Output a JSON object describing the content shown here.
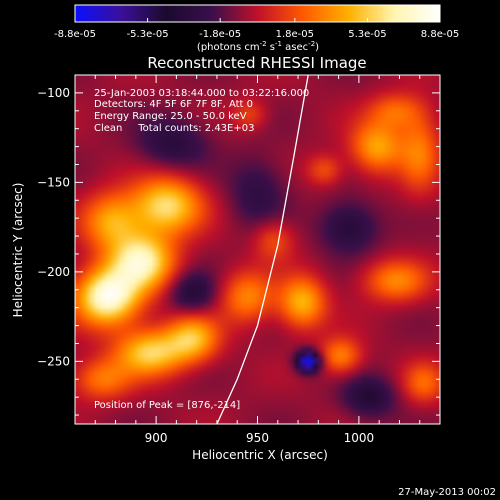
{
  "colorbar": {
    "tick_labels": [
      "-8.8e-05",
      "-5.3e-05",
      "-1.8e-05",
      "1.8e-05",
      "5.3e-05",
      "8.8e-05"
    ],
    "units_main": "(photons cm",
    "units_sup1": "-2",
    "units_mid": " s",
    "units_sup2": "-1",
    "units_end": " asec",
    "units_sup3": "-2",
    "units_close": ")",
    "stops": [
      "#0a10ff",
      "#3b0f9a",
      "#1a0a2e",
      "#3a0f4a",
      "#c0102a",
      "#ff5a00",
      "#ffb000",
      "#fff6b0",
      "#ffffff"
    ]
  },
  "chart_data": {
    "type": "heatmap",
    "title": "Reconstructed RHESSI Image",
    "xlabel": "Heliocentric X (arcsec)",
    "ylabel": "Heliocentric Y (arcsec)",
    "xlim": [
      860,
      1040
    ],
    "ylim": [
      -285,
      -90
    ],
    "x_ticks": [
      900,
      950,
      1000
    ],
    "x_tick_labels": [
      "900",
      "950",
      "1000"
    ],
    "y_ticks": [
      -100,
      -150,
      -200,
      -250
    ],
    "y_tick_labels": [
      "−100",
      "−150",
      "−200",
      "−250"
    ],
    "colorbar_range": [
      -8.8e-05,
      8.8e-05
    ],
    "annotations": [
      "25-Jan-2003 03:18:44.000 to 03:22:16.000",
      "Detectors: 4F 5F 6F 7F 8F, Att 0",
      "Energy Range: 25.0 - 50.0 keV",
      "Clean     Total counts: 2.43E+03"
    ],
    "peak_label": "Position of Peak = [876,-214]",
    "peak": [
      876,
      -214
    ],
    "limb_curve": [
      [
        930,
        -285
      ],
      [
        940,
        -260
      ],
      [
        950,
        -230
      ],
      [
        960,
        -185
      ],
      [
        968,
        -135
      ],
      [
        975,
        -90
      ]
    ],
    "sources": [
      {
        "x": 876,
        "y": -214,
        "sx": 11,
        "sy": 11,
        "a": 1.0
      },
      {
        "x": 893,
        "y": -194,
        "sx": 11,
        "sy": 11,
        "a": 0.85
      },
      {
        "x": 905,
        "y": -163,
        "sx": 12,
        "sy": 11,
        "a": 0.75
      },
      {
        "x": 878,
        "y": -172,
        "sx": 10,
        "sy": 11,
        "a": 0.55
      },
      {
        "x": 897,
        "y": -245,
        "sx": 12,
        "sy": 9,
        "a": 0.7
      },
      {
        "x": 918,
        "y": -237,
        "sx": 9,
        "sy": 9,
        "a": 0.6
      },
      {
        "x": 873,
        "y": -260,
        "sx": 10,
        "sy": 8,
        "a": 0.4
      },
      {
        "x": 945,
        "y": -214,
        "sx": 9,
        "sy": 10,
        "a": 0.45
      },
      {
        "x": 958,
        "y": -182,
        "sx": 7,
        "sy": 8,
        "a": 0.3
      },
      {
        "x": 972,
        "y": -217,
        "sx": 8,
        "sy": 10,
        "a": 0.6
      },
      {
        "x": 991,
        "y": -247,
        "sx": 7,
        "sy": 7,
        "a": 0.45
      },
      {
        "x": 1018,
        "y": -205,
        "sx": 11,
        "sy": 8,
        "a": 0.45
      },
      {
        "x": 1009,
        "y": -130,
        "sx": 9,
        "sy": 10,
        "a": 0.55
      },
      {
        "x": 1030,
        "y": -132,
        "sx": 7,
        "sy": 16,
        "a": 0.4
      },
      {
        "x": 1018,
        "y": -110,
        "sx": 9,
        "sy": 7,
        "a": 0.35
      },
      {
        "x": 1032,
        "y": -262,
        "sx": 7,
        "sy": 8,
        "a": 0.35
      },
      {
        "x": 983,
        "y": -143,
        "sx": 6,
        "sy": 6,
        "a": 0.3
      },
      {
        "x": 946,
        "y": -112,
        "sx": 6,
        "sy": 6,
        "a": 0.25
      },
      {
        "x": 975,
        "y": -250,
        "sx": 4,
        "sy": 4,
        "a": -1.0
      },
      {
        "x": 918,
        "y": -212,
        "sx": 8,
        "sy": 8,
        "a": -0.35
      },
      {
        "x": 908,
        "y": -128,
        "sx": 12,
        "sy": 10,
        "a": -0.3
      },
      {
        "x": 995,
        "y": -175,
        "sx": 10,
        "sy": 10,
        "a": -0.35
      },
      {
        "x": 1005,
        "y": -270,
        "sx": 9,
        "sy": 8,
        "a": -0.35
      },
      {
        "x": 950,
        "y": -155,
        "sx": 10,
        "sy": 14,
        "a": -0.25
      }
    ]
  },
  "footer": {
    "date": "27-May-2013 00:02"
  }
}
